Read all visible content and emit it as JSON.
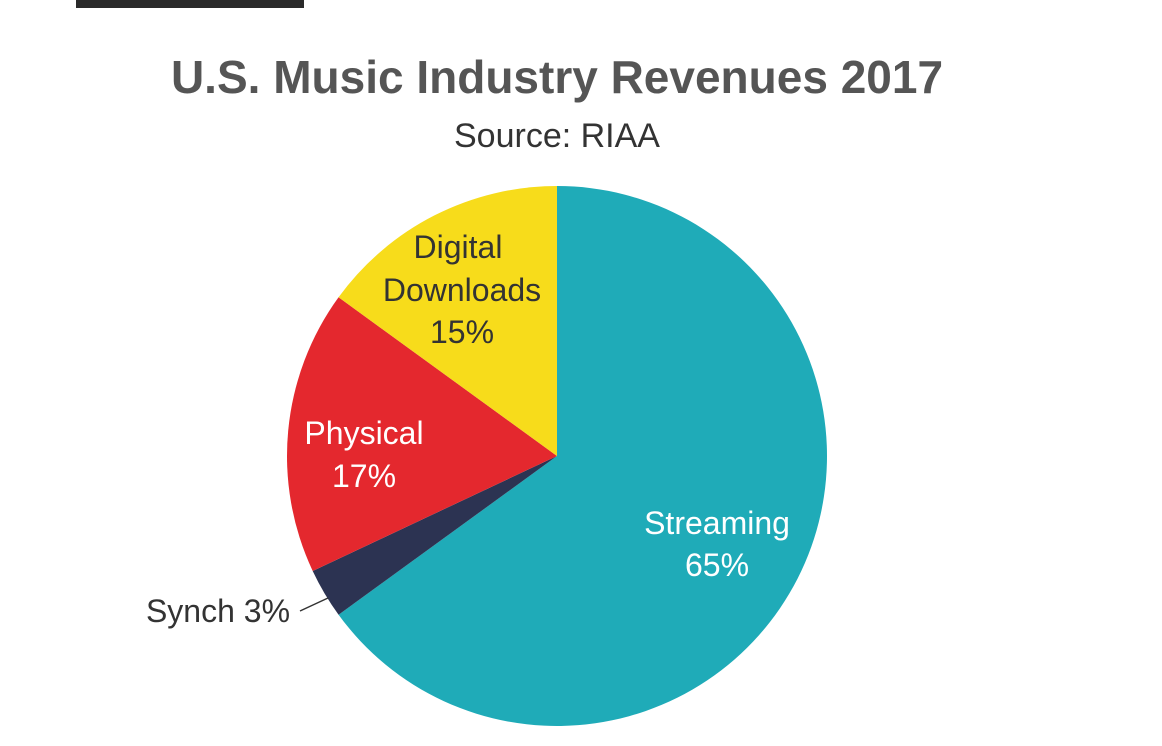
{
  "chart_data": {
    "type": "pie",
    "title": "U.S. Music Industry Revenues 2017",
    "subtitle": "Source: RIAA",
    "slices": [
      {
        "name": "Streaming",
        "value": 65,
        "label_line1": "Streaming",
        "label_line2": "65%",
        "color": "#1fabb8",
        "text_color": "#ffffff"
      },
      {
        "name": "Synch",
        "value": 3,
        "label_line1": "Synch 3%",
        "label_line2": "",
        "color": "#2c3352",
        "text_color": "#333333"
      },
      {
        "name": "Physical",
        "value": 17,
        "label_line1": "Physical",
        "label_line2": "17%",
        "color": "#e4282e",
        "text_color": "#ffffff"
      },
      {
        "name": "Digital Downloads",
        "value": 15,
        "label_line1": "Digital",
        "label_line1b": "Downloads",
        "label_line2": "15%",
        "color": "#f7dc1b",
        "text_color": "#333333"
      }
    ]
  }
}
